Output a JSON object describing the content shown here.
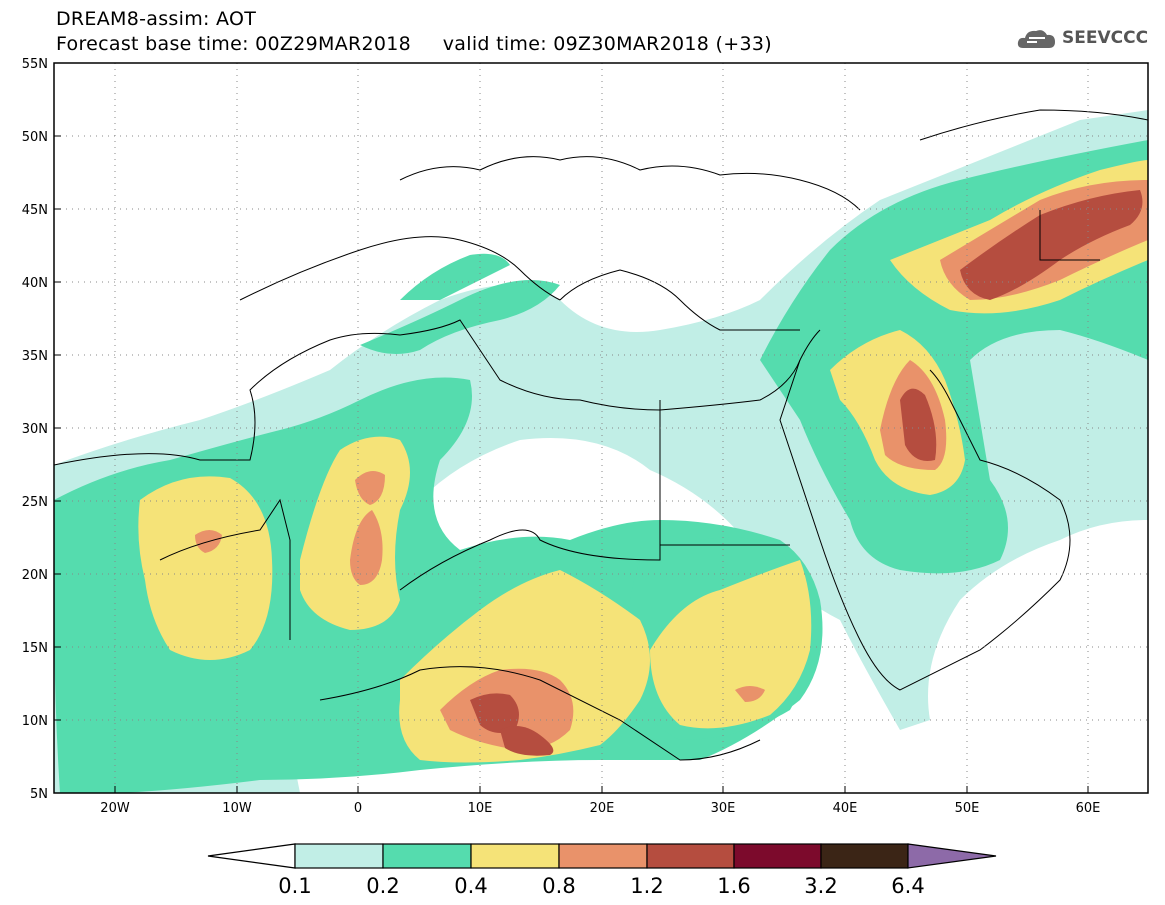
{
  "header": {
    "line1": "DREAM8-assim: AOT",
    "line2": "Forecast base time: 00Z29MAR2018     valid time: 09Z30MAR2018 (+33)"
  },
  "logo": {
    "text": "SEEVCCC",
    "icon": "cloud-icon"
  },
  "map": {
    "lon_range": [
      -25,
      65
    ],
    "lat_range": [
      5,
      55
    ],
    "lat_labels": [
      "55N",
      "50N",
      "45N",
      "40N",
      "35N",
      "30N",
      "25N",
      "20N",
      "15N",
      "10N",
      "5N"
    ],
    "lon_labels": [
      "20W",
      "10W",
      "0",
      "10E",
      "20E",
      "30E",
      "40E",
      "50E",
      "60E"
    ],
    "grid": "dotted"
  },
  "colorbar": {
    "labels": [
      "0.1",
      "0.2",
      "0.4",
      "0.8",
      "1.2",
      "1.6",
      "3.2",
      "6.4"
    ],
    "colors": [
      "#ffffff",
      "#c1eee6",
      "#55dcae",
      "#f5e378",
      "#e9926a",
      "#b54d3f",
      "#7c0a2c",
      "#3b2516",
      "#8d6aa8"
    ]
  }
}
